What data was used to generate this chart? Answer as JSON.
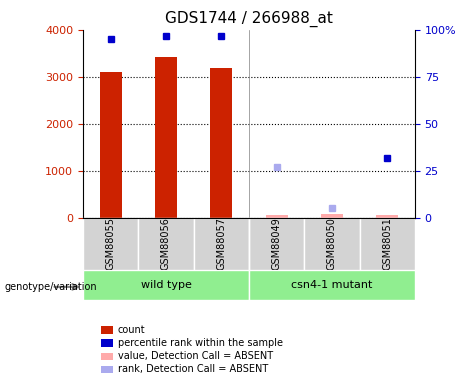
{
  "title": "GDS1744 / 266988_at",
  "samples": [
    "GSM88055",
    "GSM88056",
    "GSM88057",
    "GSM88049",
    "GSM88050",
    "GSM88051"
  ],
  "groups": [
    {
      "label": "wild type",
      "samples": [
        "GSM88055",
        "GSM88056",
        "GSM88057"
      ],
      "color": "#90EE90"
    },
    {
      "label": "csn4-1 mutant",
      "samples": [
        "GSM88049",
        "GSM88050",
        "GSM88051"
      ],
      "color": "#90EE90"
    }
  ],
  "bar_values": [
    3100,
    3430,
    3180,
    50,
    70,
    60
  ],
  "bar_absent": [
    false,
    false,
    false,
    true,
    true,
    true
  ],
  "bar_colors_present": "#cc2200",
  "bar_colors_absent": "#ffaaaa",
  "dot_values": [
    95,
    97,
    97,
    null,
    5,
    32
  ],
  "dot_absent": [
    false,
    false,
    false,
    true,
    true,
    false
  ],
  "dot_colors_present": "#0000cc",
  "dot_colors_absent": "#aaaaee",
  "absent_rank_values": [
    null,
    null,
    null,
    27,
    null,
    null
  ],
  "ylim_left": [
    0,
    4000
  ],
  "ylim_right": [
    0,
    100
  ],
  "yticks_left": [
    0,
    1000,
    2000,
    3000,
    4000
  ],
  "yticks_right": [
    0,
    25,
    50,
    75,
    100
  ],
  "yticklabels_left": [
    "0",
    "1000",
    "2000",
    "3000",
    "4000"
  ],
  "yticklabels_right": [
    "0",
    "25",
    "50",
    "75",
    "100%"
  ],
  "left_color": "#cc2200",
  "right_color": "#0000cc",
  "grid_color": "#000000",
  "bg_color": "#ffffff",
  "label_area_color": "#d3d3d3",
  "genotype_label": "genotype/variation",
  "legend_items": [
    {
      "color": "#cc2200",
      "label": "count"
    },
    {
      "color": "#0000cc",
      "label": "percentile rank within the sample"
    },
    {
      "color": "#ffaaaa",
      "label": "value, Detection Call = ABSENT"
    },
    {
      "color": "#aaaaee",
      "label": "rank, Detection Call = ABSENT"
    }
  ]
}
